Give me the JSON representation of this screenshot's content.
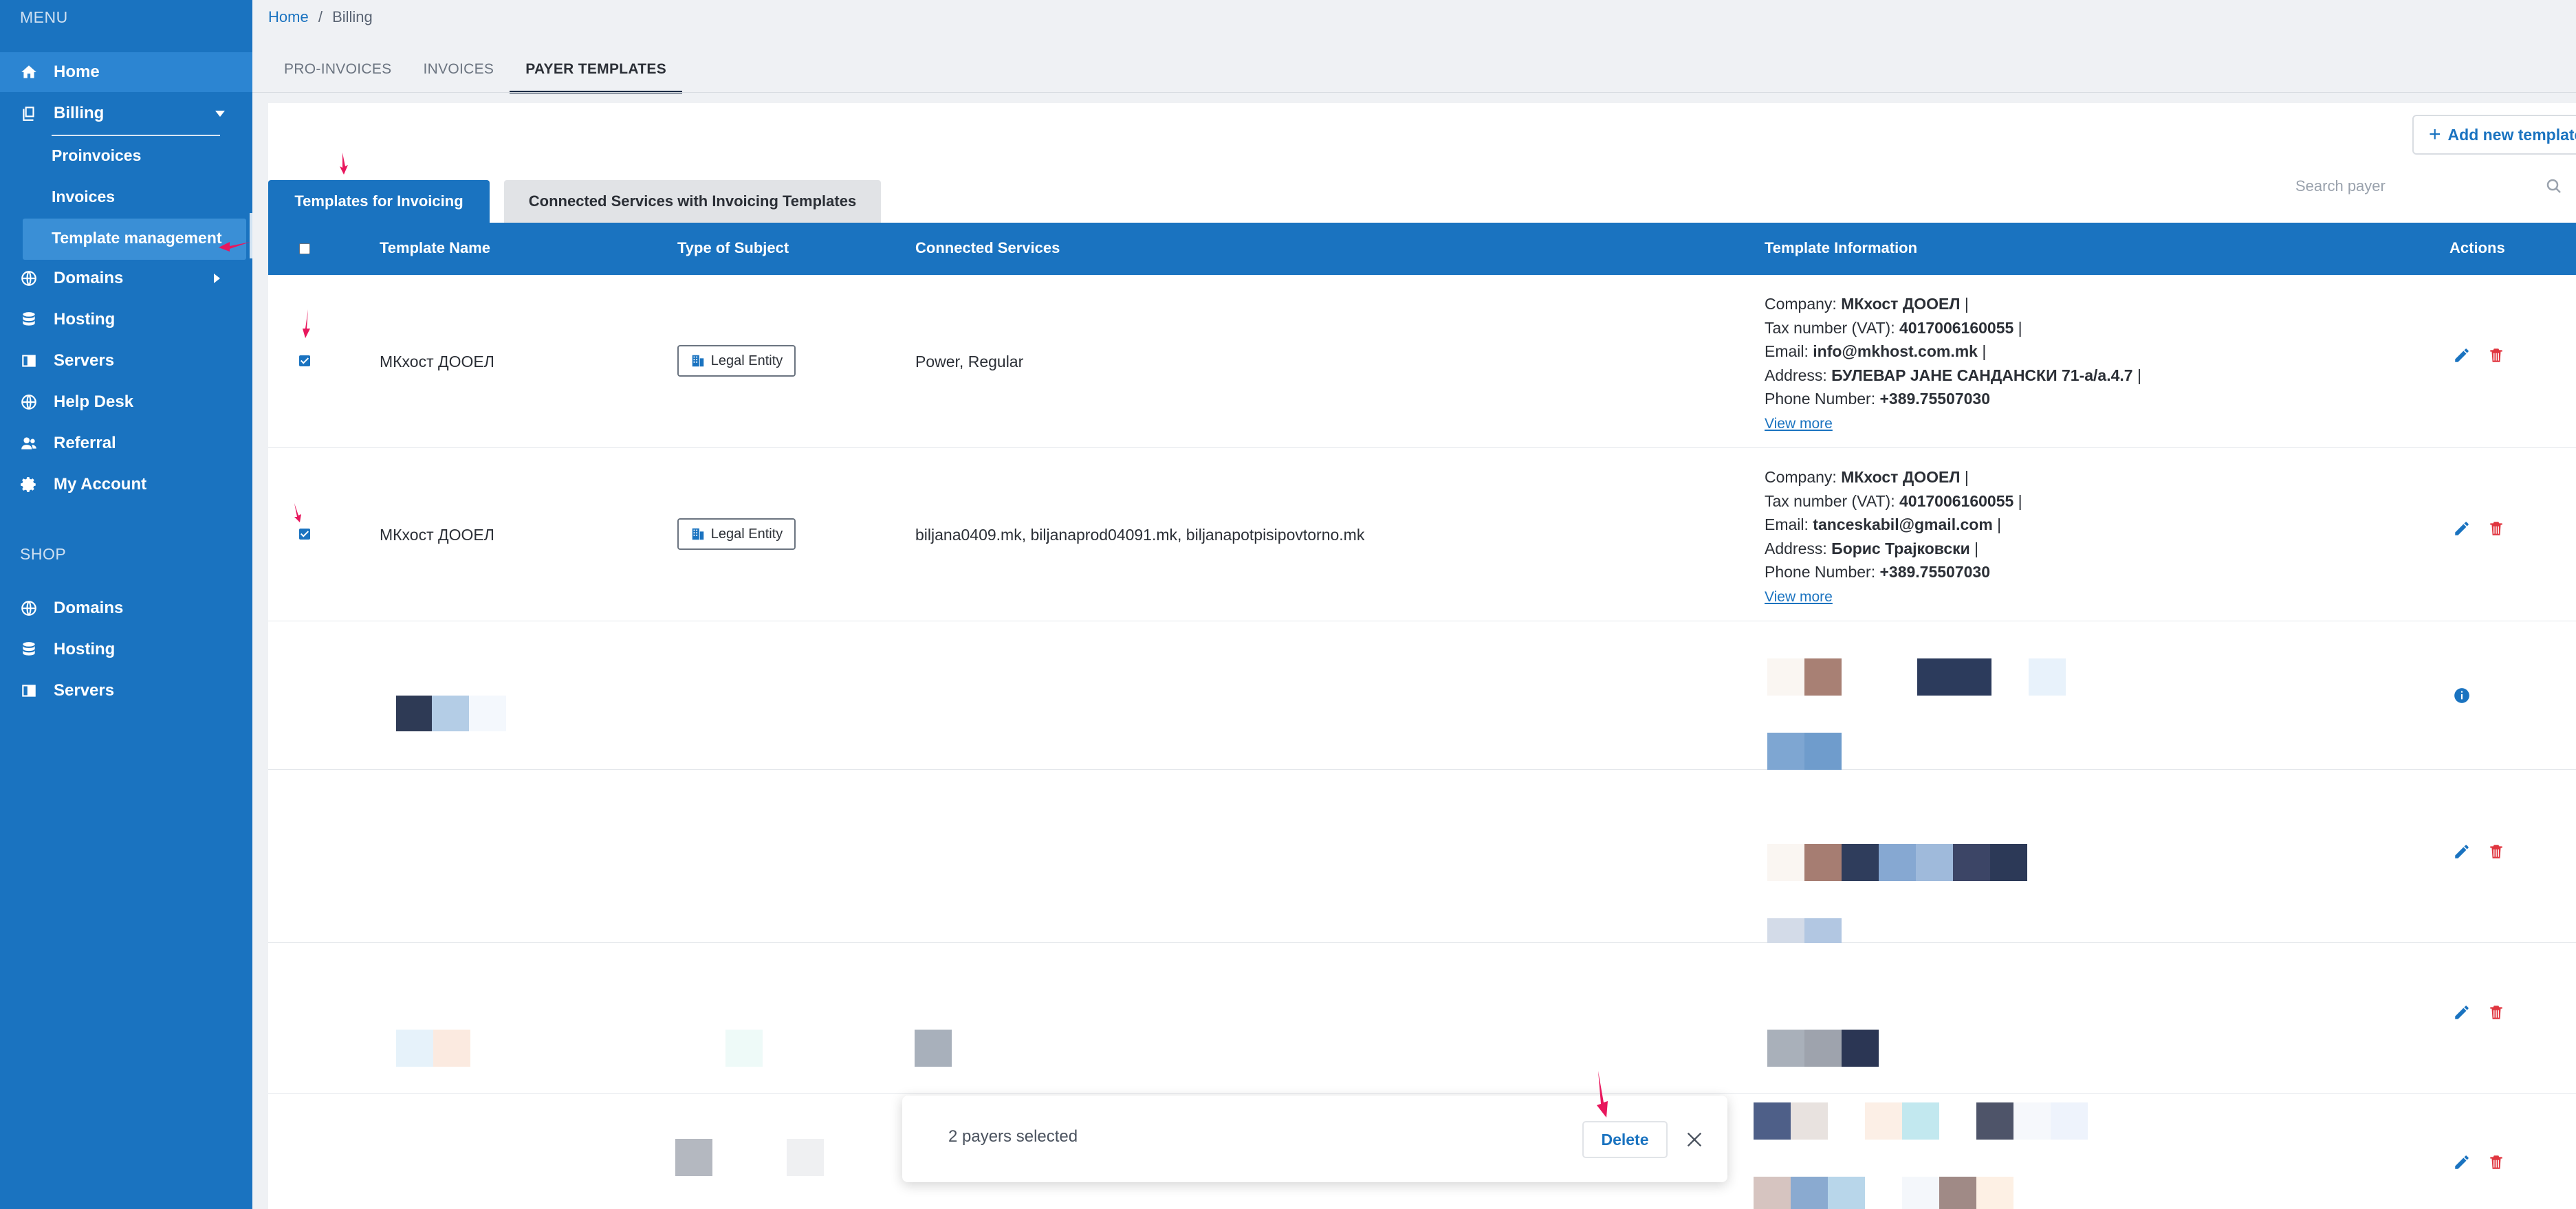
{
  "sidebar": {
    "menu_heading": "MENU",
    "shop_heading": "SHOP",
    "items": [
      {
        "label": "Home",
        "icon": "home-icon"
      },
      {
        "label": "Billing",
        "icon": "billing-icon"
      },
      {
        "label": "Domains",
        "icon": "globe-icon"
      },
      {
        "label": "Hosting",
        "icon": "database-icon"
      },
      {
        "label": "Servers",
        "icon": "server-icon"
      },
      {
        "label": "Help Desk",
        "icon": "globe-icon"
      },
      {
        "label": "Referral",
        "icon": "users-icon"
      },
      {
        "label": "My Account",
        "icon": "gear-icon"
      }
    ],
    "billing_sub": [
      "Proinvoices",
      "Invoices",
      "Template management"
    ],
    "shop_items": [
      {
        "label": "Domains",
        "icon": "globe-icon"
      },
      {
        "label": "Hosting",
        "icon": "database-icon"
      },
      {
        "label": "Servers",
        "icon": "server-icon"
      }
    ]
  },
  "breadcrumb": {
    "home": "Home",
    "sep": "/",
    "current": "Billing"
  },
  "top_tabs": [
    "PRO-INVOICES",
    "INVOICES",
    "PAYER TEMPLATES"
  ],
  "add_button": "Add new template",
  "inner_tabs": [
    "Templates for Invoicing",
    "Connected Services with Invoicing Templates"
  ],
  "search": {
    "placeholder": "Search payer"
  },
  "table": {
    "headers": [
      "Template Name",
      "Type of Subject",
      "Connected Services",
      "Template Information",
      "Actions"
    ],
    "rows": [
      {
        "name": "МКхост ДООЕЛ",
        "type": "Legal Entity",
        "services": "Power, Regular",
        "info": {
          "company_label": "Company:",
          "company": "МКхост ДООЕЛ",
          "vat_label": "Tax number (VAT):",
          "vat": "4017006160055",
          "email_label": "Email:",
          "email": "info@mkhost.com.mk",
          "address_label": "Address:",
          "address": "БУЛЕВАР ЈАНЕ САНДАНСКИ 71-а/а.4.7",
          "phone_label": "Phone Number:",
          "phone": "+389.75507030",
          "view_more": "View more",
          "sep": "|"
        },
        "checked": true
      },
      {
        "name": "МКхост ДООЕЛ",
        "type": "Legal Entity",
        "services": "biljana0409.mk, biljanaprod04091.mk, biljanapotpisipovtorno.mk",
        "info": {
          "company_label": "Company:",
          "company": "МКхост ДООЕЛ",
          "vat_label": "Tax number (VAT):",
          "vat": "4017006160055",
          "email_label": "Email:",
          "email": "tanceskabil@gmail.com",
          "address_label": "Address:",
          "address": "Борис Трајковски",
          "phone_label": "Phone Number:",
          "phone": "+389.75507030",
          "view_more": "View more",
          "sep": "|"
        },
        "checked": true
      }
    ]
  },
  "selection_bar": {
    "count_text": "2 payers selected",
    "delete_label": "Delete"
  },
  "colors": {
    "primary": "#1a73c0",
    "danger": "#e0353f",
    "annotation": "#e8175d"
  }
}
